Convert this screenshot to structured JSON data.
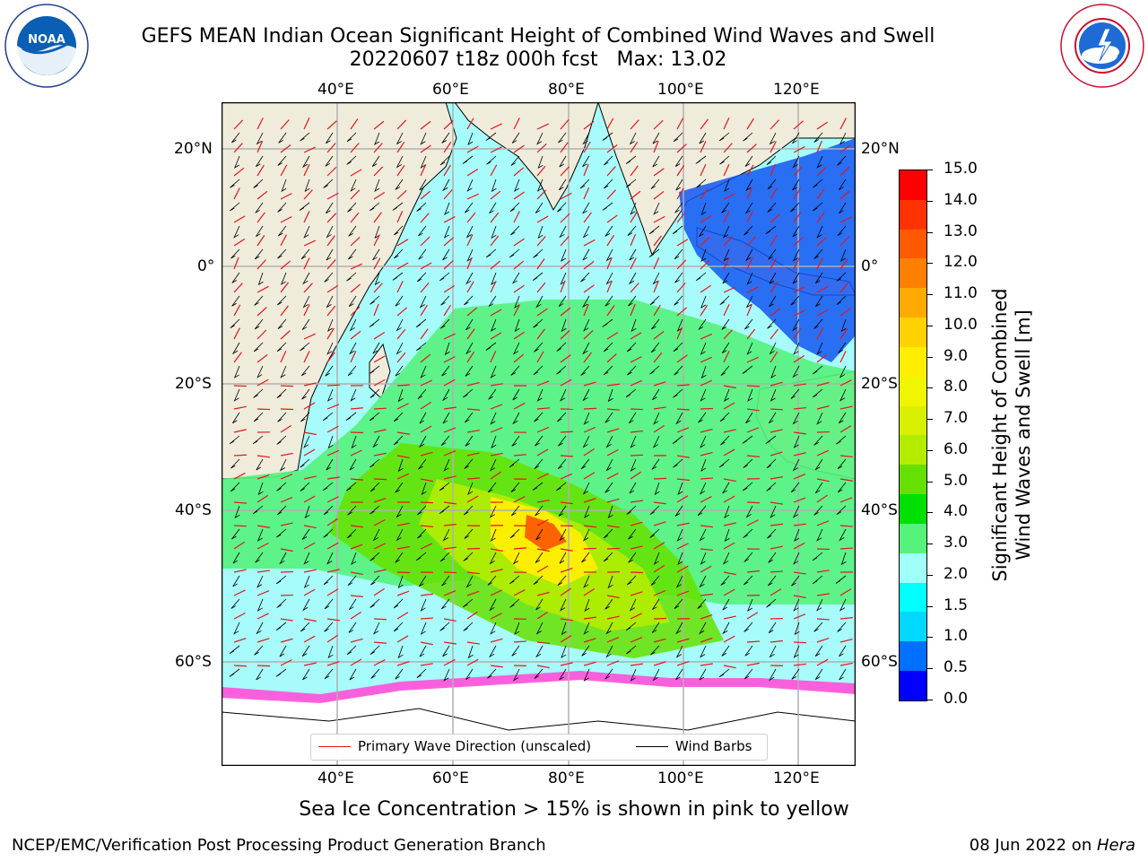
{
  "header": {
    "title_line1": "GEFS MEAN Indian Ocean Significant Height of Combined Wind Waves and Swell",
    "title_line2": "20220607 t18z 000h fcst   Max: 13.02"
  },
  "map": {
    "lon_labels": [
      "40°E",
      "60°E",
      "80°E",
      "100°E",
      "120°E"
    ],
    "lat_labels": [
      "20°N",
      "0°",
      "20°S",
      "40°S",
      "60°S"
    ],
    "colors": {
      "land": "#efecdc",
      "grid": "#b0b0b0",
      "wave_arrow": "#e8141a",
      "barb": "#000000"
    }
  },
  "legend": {
    "wave_direction": "Primary Wave Direction (unscaled)",
    "wind_barbs": "Wind Barbs"
  },
  "colorbar": {
    "label_line1": "Significant Height of Combined",
    "label_line2": "Wind Waves and Swell [m]",
    "ticks": [
      "15.0",
      "14.0",
      "13.0",
      "12.0",
      "11.0",
      "10.0",
      "9.0",
      "8.0",
      "7.0",
      "6.0",
      "5.0",
      "4.0",
      "3.0",
      "2.0",
      "1.5",
      "1.0",
      "0.5",
      "0.0"
    ],
    "colors_top_to_bottom": [
      "#ff0000",
      "#ff3300",
      "#ff5a00",
      "#ff8000",
      "#ffaa00",
      "#ffd200",
      "#ffee00",
      "#f0f500",
      "#d8f000",
      "#b4ec00",
      "#66e000",
      "#00e000",
      "#55f27c",
      "#a0fff8",
      "#00ffff",
      "#00d8ff",
      "#0070ff",
      "#0000ff"
    ]
  },
  "notes": {
    "sea_ice": "Sea Ice Concentration > 15% is shown in pink to yellow"
  },
  "footer": {
    "left": "NCEP/EMC/Verification Post Processing Product Generation Branch",
    "right_prefix": "08 Jun 2022 on ",
    "right_system": "Hera"
  },
  "logos": {
    "noaa": "NOAA",
    "noaa_ring": "NATIONAL OCEANIC AND ATMOSPHERIC ADMINISTRATION · U.S. DEPARTMENT OF COMMERCE",
    "nws_ring": "NATIONAL WEATHER SERVICE"
  }
}
